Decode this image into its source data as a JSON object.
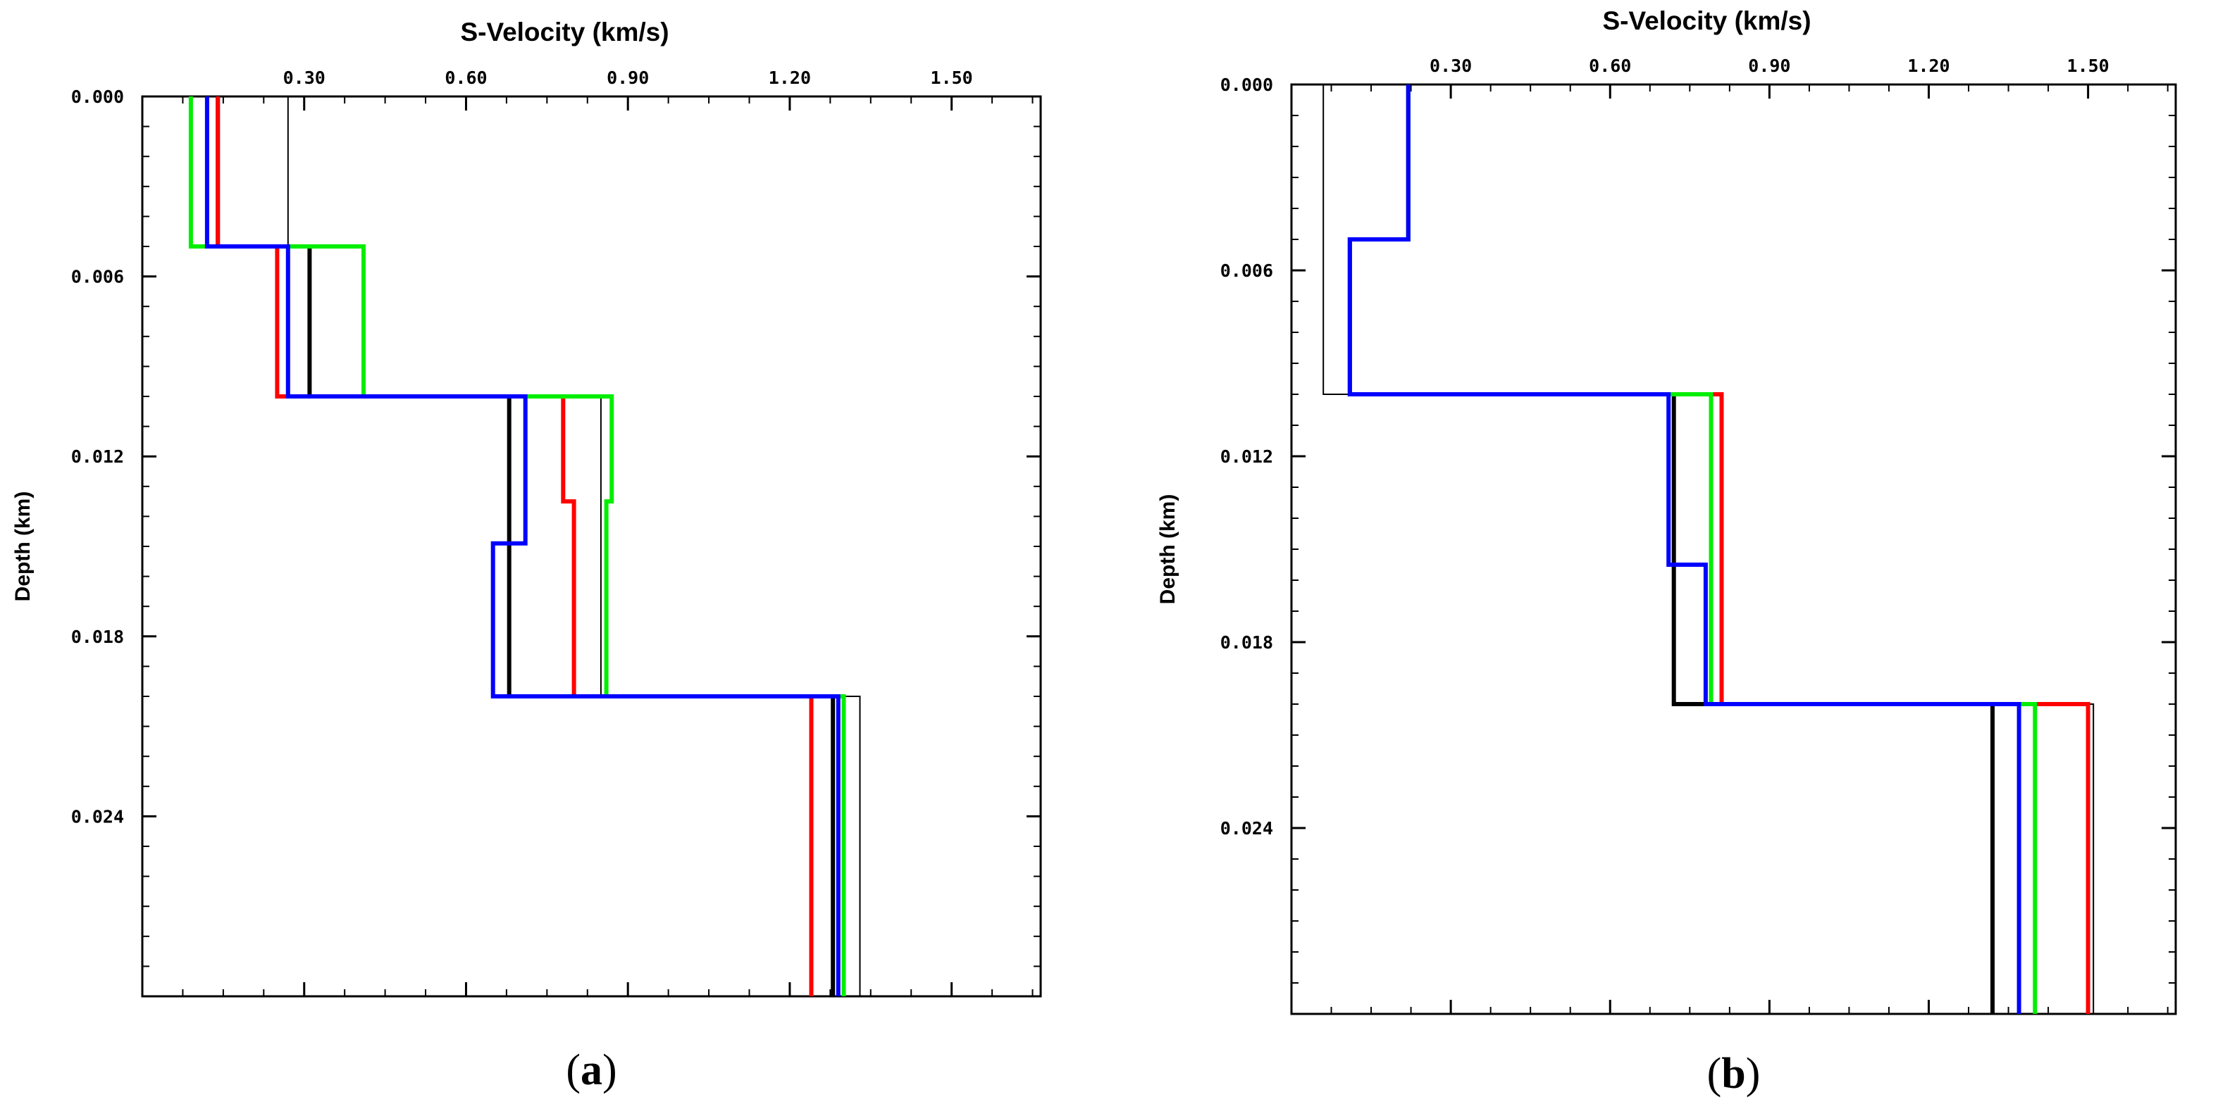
{
  "chart_data": [
    {
      "type": "line",
      "panel_label": "a",
      "caption": "(a)",
      "title": "S-Velocity (km/s)",
      "xlabel": "S-Velocity (km/s)",
      "ylabel": "Depth (km)",
      "xlim": [
        0.0,
        1.665
      ],
      "ylim": [
        0.0,
        0.03
      ],
      "y_inverted": true,
      "x_ticks": [
        0.3,
        0.6,
        0.9,
        1.2,
        1.5
      ],
      "x_tick_labels": [
        "0.30",
        "0.60",
        "0.90",
        "1.20",
        "1.50"
      ],
      "y_ticks": [
        0.0,
        0.006,
        0.012,
        0.018,
        0.024
      ],
      "y_tick_labels": [
        "0.000",
        "0.006",
        "0.012",
        "0.018",
        "0.024"
      ],
      "series": [
        {
          "name": "thin black",
          "color": "#000000",
          "width": 2,
          "depths": [
            0.0,
            0.005,
            0.01,
            0.02,
            0.03
          ],
          "values": [
            0.27,
            0.27,
            0.85,
            1.33,
            1.33
          ]
        },
        {
          "name": "black",
          "color": "#000000",
          "width": 6,
          "depths": [
            0.0,
            0.005,
            0.01,
            0.02,
            0.03
          ],
          "values": [
            0.14,
            0.31,
            0.68,
            1.28,
            1.28
          ]
        },
        {
          "name": "red",
          "color": "#ff0000",
          "width": 6,
          "depths": [
            0.0,
            0.005,
            0.01,
            0.0135,
            0.02,
            0.03
          ],
          "values": [
            0.14,
            0.25,
            0.78,
            0.8,
            1.24,
            1.24
          ]
        },
        {
          "name": "green",
          "color": "#00ee00",
          "width": 6,
          "depths": [
            0.0,
            0.005,
            0.01,
            0.0135,
            0.02,
            0.03
          ],
          "values": [
            0.09,
            0.41,
            0.87,
            0.86,
            1.3,
            1.3
          ]
        },
        {
          "name": "blue",
          "color": "#0000ff",
          "width": 6,
          "depths": [
            0.0,
            0.005,
            0.01,
            0.0149,
            0.02,
            0.03
          ],
          "values": [
            0.12,
            0.27,
            0.71,
            0.65,
            1.29,
            1.29
          ]
        }
      ]
    },
    {
      "type": "line",
      "panel_label": "b",
      "caption": "(b)",
      "title": "S-Velocity (km/s)",
      "xlabel": "S-Velocity (km/s)",
      "ylabel": "Depth (km)",
      "xlim": [
        0.0,
        1.665
      ],
      "ylim": [
        0.0,
        0.03
      ],
      "y_inverted": true,
      "x_ticks": [
        0.3,
        0.6,
        0.9,
        1.2,
        1.5
      ],
      "x_tick_labels": [
        "0.30",
        "0.60",
        "0.90",
        "1.20",
        "1.50"
      ],
      "y_ticks": [
        0.0,
        0.006,
        0.012,
        0.018,
        0.024
      ],
      "y_tick_labels": [
        "0.000",
        "0.006",
        "0.012",
        "0.018",
        "0.024"
      ],
      "series": [
        {
          "name": "thin black",
          "color": "#000000",
          "width": 2,
          "depths": [
            0.0,
            0.01,
            0.02,
            0.03
          ],
          "values": [
            0.06,
            0.81,
            1.51,
            1.51
          ]
        },
        {
          "name": "black",
          "color": "#000000",
          "width": 6,
          "depths": [
            0.0,
            0.005,
            0.01,
            0.02,
            0.03
          ],
          "values": [
            0.22,
            0.11,
            0.72,
            1.32,
            1.32
          ]
        },
        {
          "name": "red",
          "color": "#ff0000",
          "width": 6,
          "depths": [
            0.0,
            0.005,
            0.01,
            0.02,
            0.03
          ],
          "values": [
            0.22,
            0.11,
            0.81,
            1.5,
            1.5
          ]
        },
        {
          "name": "green",
          "color": "#00ee00",
          "width": 6,
          "depths": [
            0.0,
            0.005,
            0.01,
            0.02,
            0.03
          ],
          "values": [
            0.22,
            0.11,
            0.79,
            1.4,
            1.4
          ]
        },
        {
          "name": "blue",
          "color": "#0000ff",
          "width": 6,
          "depths": [
            0.0,
            0.005,
            0.01,
            0.0155,
            0.02,
            0.03
          ],
          "values": [
            0.22,
            0.11,
            0.71,
            0.78,
            1.37,
            1.37
          ]
        }
      ]
    }
  ]
}
